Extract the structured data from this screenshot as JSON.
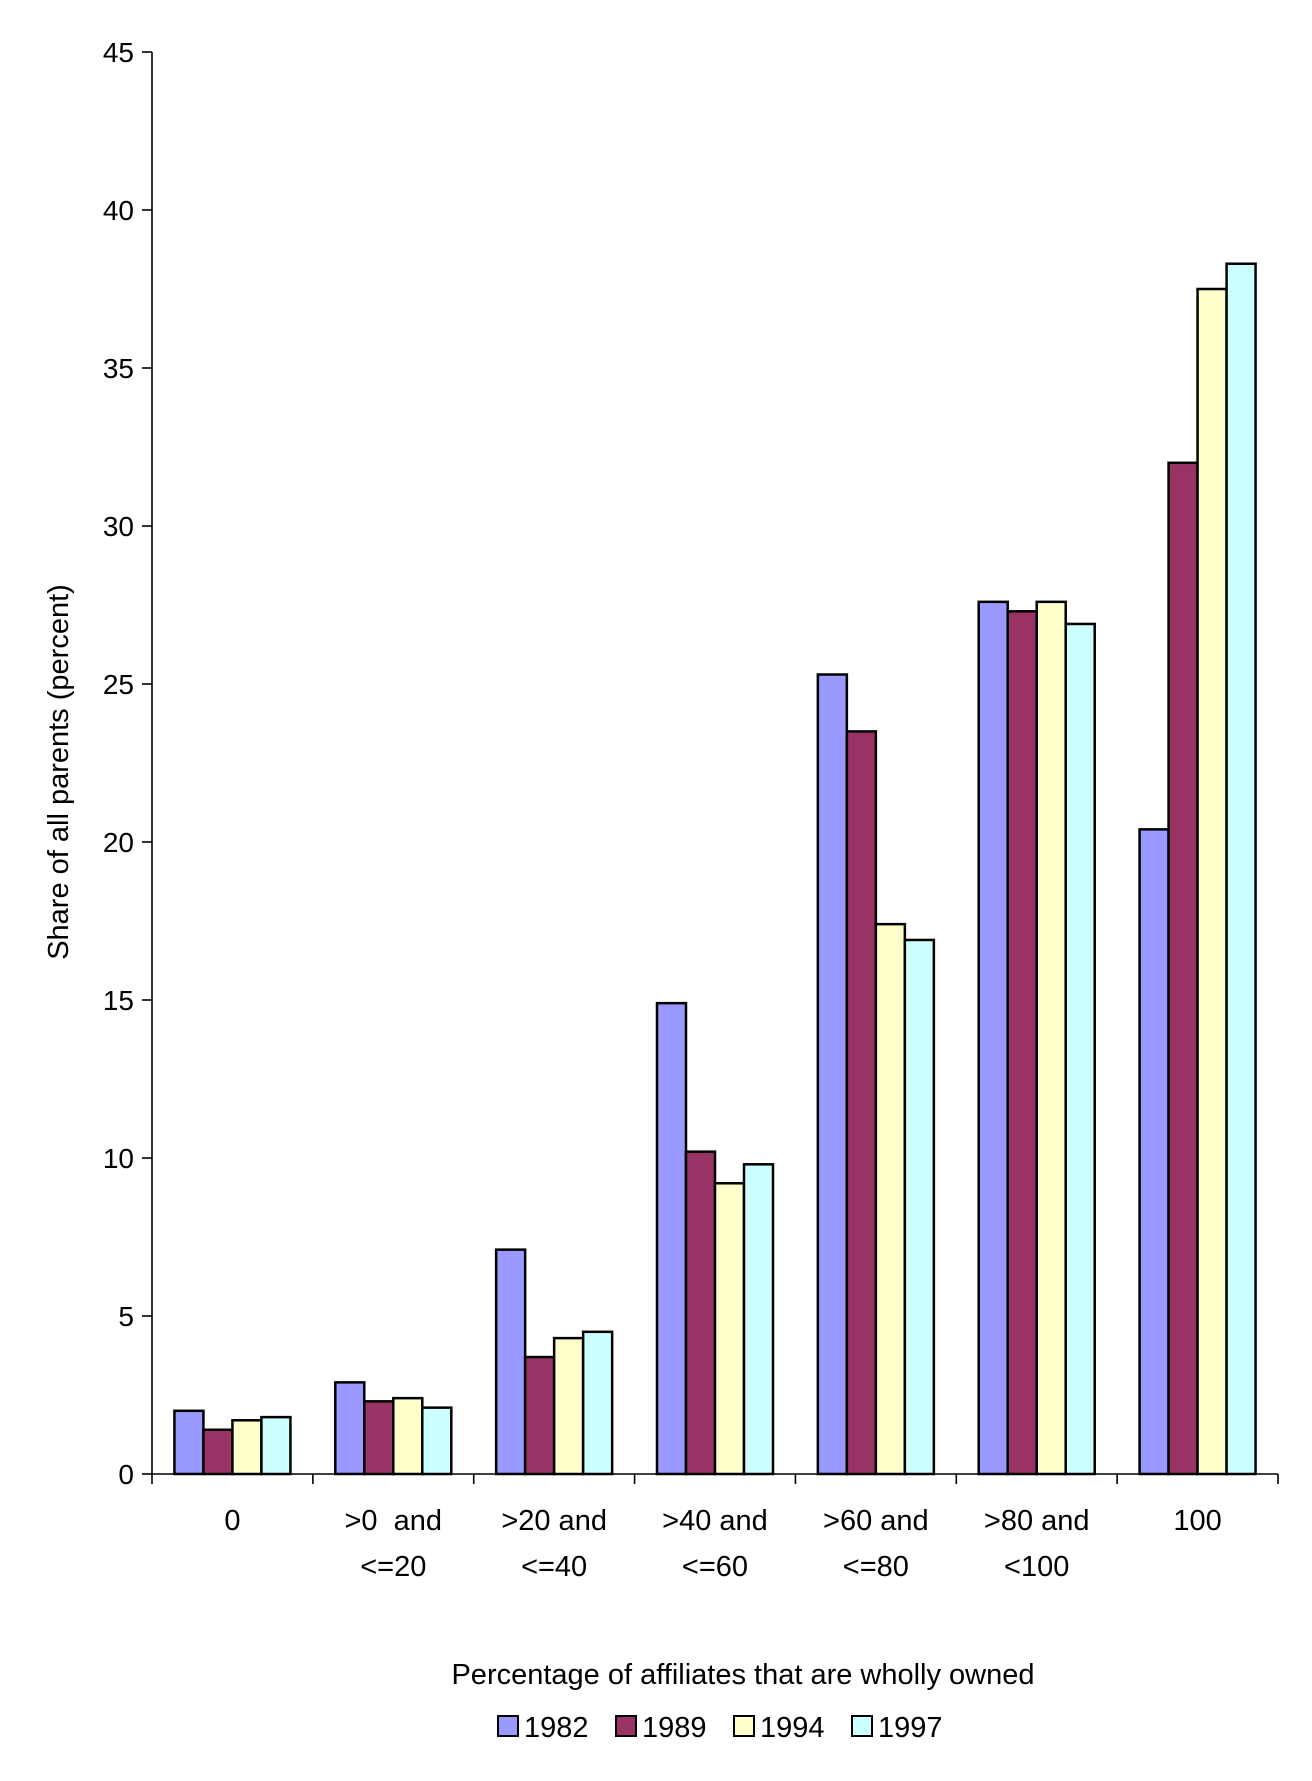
{
  "chart_data": {
    "type": "bar",
    "title": "",
    "xlabel": "Percentage of affiliates that are wholly owned",
    "ylabel": "Share of all parents (percent)",
    "ylim": [
      0,
      45
    ],
    "yticks": [
      0,
      5,
      10,
      15,
      20,
      25,
      30,
      35,
      40,
      45
    ],
    "grid": false,
    "legend_position": "bottom",
    "categories": [
      [
        "0"
      ],
      [
        ">0  and",
        "<=20"
      ],
      [
        ">20 and",
        "<=40"
      ],
      [
        ">40 and",
        "<=60"
      ],
      [
        ">60 and",
        "<=80"
      ],
      [
        ">80 and",
        "<100"
      ],
      [
        "100"
      ]
    ],
    "series": [
      {
        "name": "1982",
        "color": "#9999FF",
        "values": [
          2.0,
          2.9,
          7.1,
          14.9,
          25.3,
          27.6,
          20.4
        ]
      },
      {
        "name": "1989",
        "color": "#993366",
        "values": [
          1.4,
          2.3,
          3.7,
          10.2,
          23.5,
          27.3,
          32.0
        ]
      },
      {
        "name": "1994",
        "color": "#FFFFCC",
        "values": [
          1.7,
          2.4,
          4.3,
          9.2,
          17.4,
          27.6,
          37.5
        ]
      },
      {
        "name": "1997",
        "color": "#CCFFFF",
        "values": [
          1.8,
          2.1,
          4.5,
          9.8,
          16.9,
          26.9,
          38.3
        ]
      }
    ]
  }
}
